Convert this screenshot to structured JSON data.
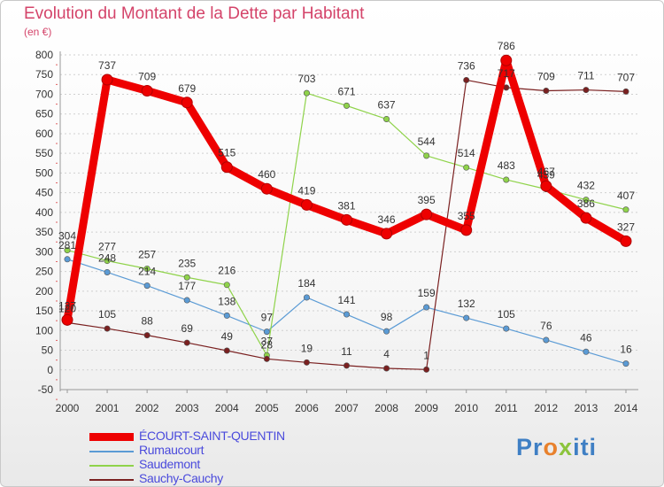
{
  "header": {
    "title": "Evolution du Montant de la Dette par Habitant",
    "subtitle": "(en €)"
  },
  "logo": {
    "text": "Proxiti",
    "parts": [
      "Pr",
      "o",
      "x",
      "iti"
    ]
  },
  "chart_data": {
    "type": "line",
    "title": "Evolution du Montant de la Dette par Habitant",
    "subtitle": "(en €)",
    "xlabel": "",
    "ylabel": "",
    "x": [
      2000,
      2001,
      2002,
      2003,
      2004,
      2005,
      2006,
      2007,
      2008,
      2009,
      2010,
      2011,
      2012,
      2013,
      2014
    ],
    "ylim": [
      -50,
      800
    ],
    "yticks": [
      -50,
      0,
      50,
      100,
      150,
      200,
      250,
      300,
      350,
      400,
      450,
      500,
      550,
      600,
      650,
      700,
      750,
      800
    ],
    "grid": "horizontal dashed",
    "legend": "bottom-left",
    "series": [
      {
        "name": "ÉCOURT-SAINT-QUENTIN",
        "color": "#ee0000",
        "values": [
          127,
          737,
          709,
          679,
          515,
          460,
          419,
          381,
          346,
          395,
          355,
          786,
          467,
          386,
          327
        ]
      },
      {
        "name": "Rumaucourt",
        "color": "#5b9bd5",
        "values": [
          281,
          248,
          214,
          177,
          138,
          97,
          184,
          141,
          98,
          159,
          132,
          105,
          76,
          46,
          16
        ]
      },
      {
        "name": "Saudemont",
        "color": "#8fd34a",
        "values": [
          304,
          277,
          257,
          235,
          216,
          37,
          703,
          671,
          637,
          544,
          514,
          483,
          459,
          432,
          407
        ]
      },
      {
        "name": "Sauchy-Cauchy",
        "color": "#7a2020",
        "values": [
          120,
          105,
          88,
          69,
          49,
          28,
          19,
          11,
          4,
          1,
          736,
          717,
          709,
          711,
          707
        ]
      }
    ]
  }
}
